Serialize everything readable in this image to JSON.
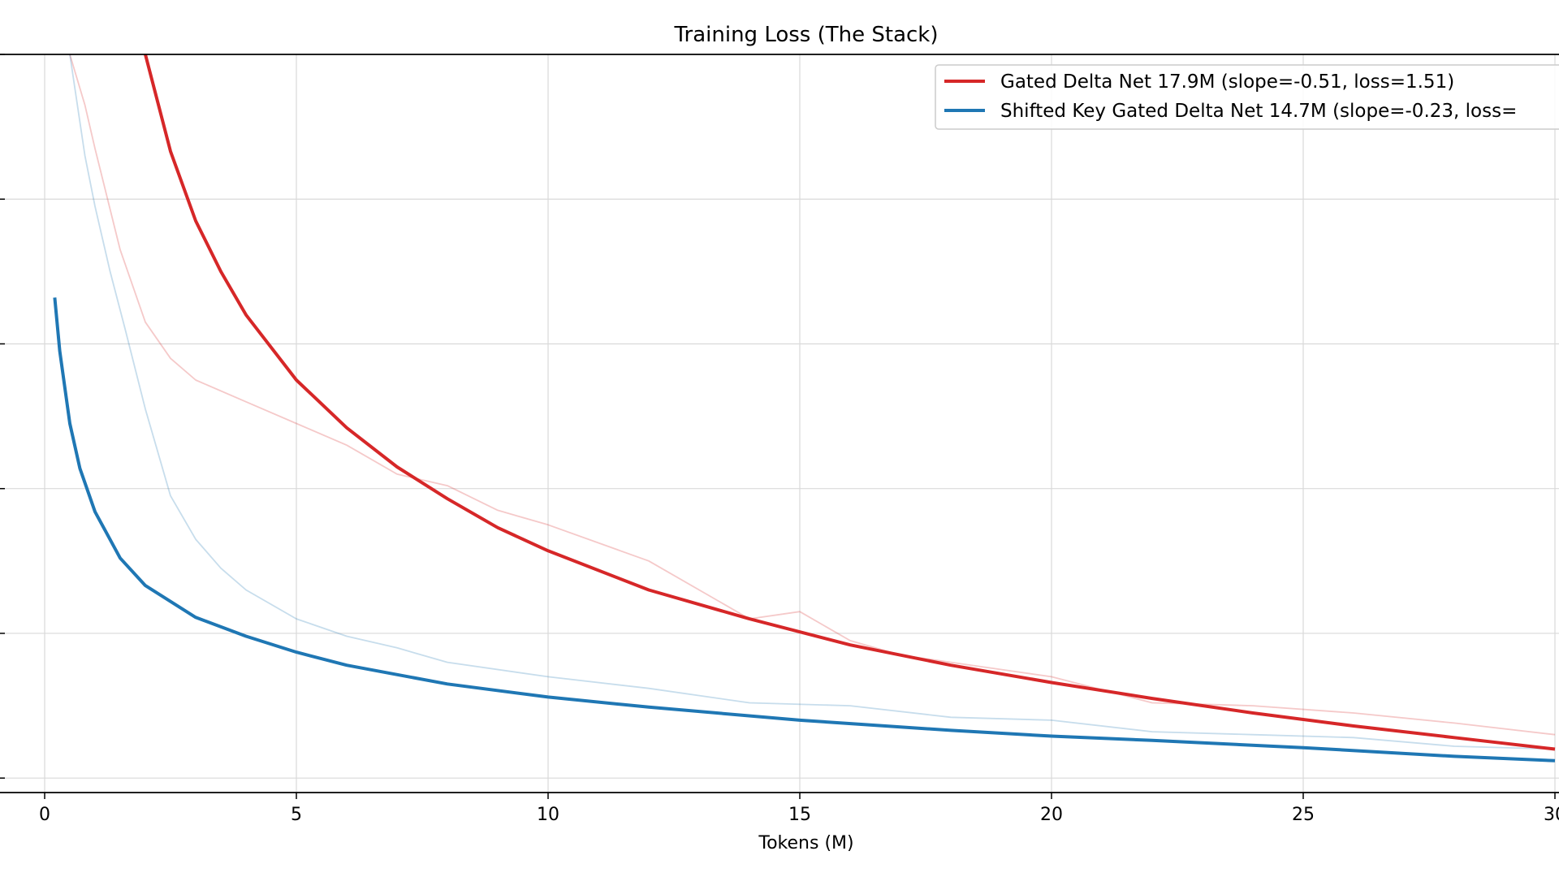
{
  "chart_data": {
    "type": "line",
    "title": "Training Loss (The Stack)",
    "xlabel": "Tokens (M)",
    "ylabel": "",
    "xlim": [
      0,
      30
    ],
    "ylim": [
      0,
      5.1
    ],
    "y_tick_labels_visible": false,
    "grid": true,
    "legend_position": "top-right",
    "x_ticks": [
      {
        "value": 0,
        "label": "0"
      },
      {
        "value": 5,
        "label": "5"
      },
      {
        "value": 10,
        "label": "10"
      },
      {
        "value": 15,
        "label": "15"
      },
      {
        "value": 20,
        "label": "20"
      },
      {
        "value": 25,
        "label": "25"
      },
      {
        "value": 30,
        "label": "30"
      }
    ],
    "y_grid_values": [
      0.1,
      1.1,
      2.1,
      3.1,
      4.1,
      5.1
    ],
    "series": [
      {
        "name": "Gated Delta Net 17.9M (slope=-0.51, loss=1.51)",
        "color": "#d62728",
        "kind": "fit",
        "x": [
          2.0,
          2.5,
          3,
          3.5,
          4,
          5,
          6,
          7,
          8,
          9,
          10,
          12,
          14,
          16,
          18,
          20,
          22,
          24,
          26,
          28,
          30
        ],
        "y": [
          5.1,
          4.43,
          3.95,
          3.6,
          3.3,
          2.85,
          2.52,
          2.25,
          2.03,
          1.83,
          1.67,
          1.4,
          1.2,
          1.02,
          0.88,
          0.76,
          0.65,
          0.55,
          0.46,
          0.38,
          0.3
        ]
      },
      {
        "name": "Shifted Key Gated Delta Net 14.7M (slope=-0.23, loss=",
        "color": "#1f77b4",
        "kind": "fit",
        "x": [
          0.2,
          0.3,
          0.5,
          0.7,
          1,
          1.5,
          2,
          3,
          4,
          5,
          6,
          8,
          10,
          12,
          15,
          18,
          20,
          22,
          25,
          28,
          30
        ],
        "y": [
          3.42,
          3.05,
          2.55,
          2.24,
          1.94,
          1.62,
          1.43,
          1.21,
          1.08,
          0.97,
          0.88,
          0.75,
          0.66,
          0.59,
          0.5,
          0.43,
          0.39,
          0.36,
          0.31,
          0.25,
          0.22
        ]
      },
      {
        "name": "",
        "color": "#d62728",
        "kind": "raw",
        "x": [
          0.5,
          0.8,
          1,
          1.5,
          2,
          2.5,
          3,
          4,
          5,
          6,
          7,
          8,
          9,
          10,
          12,
          14,
          15,
          16,
          17,
          18,
          19,
          20,
          22,
          24,
          26,
          28,
          30
        ],
        "y": [
          5.1,
          4.75,
          4.45,
          3.75,
          3.25,
          3.0,
          2.85,
          2.7,
          2.55,
          2.4,
          2.2,
          2.12,
          1.95,
          1.85,
          1.6,
          1.2,
          1.25,
          1.05,
          0.95,
          0.9,
          0.85,
          0.8,
          0.62,
          0.6,
          0.55,
          0.48,
          0.4
        ]
      },
      {
        "name": "",
        "color": "#1f77b4",
        "kind": "raw",
        "x": [
          0.5,
          0.8,
          1,
          1.3,
          1.6,
          2,
          2.5,
          3,
          3.5,
          4,
          5,
          6,
          7,
          8,
          10,
          12,
          14,
          16,
          18,
          20,
          22,
          24,
          26,
          28,
          30
        ],
        "y": [
          5.1,
          4.4,
          4.05,
          3.6,
          3.2,
          2.65,
          2.05,
          1.75,
          1.55,
          1.4,
          1.2,
          1.08,
          1.0,
          0.9,
          0.8,
          0.72,
          0.62,
          0.6,
          0.52,
          0.5,
          0.42,
          0.4,
          0.38,
          0.32,
          0.3
        ]
      }
    ]
  }
}
